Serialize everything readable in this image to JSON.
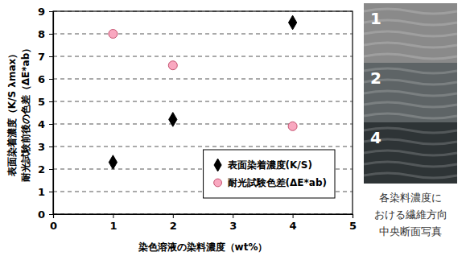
{
  "chart_data": {
    "type": "scatter",
    "xlabel": "染色溶液の染料濃度（wt%）",
    "ylabel": [
      "表面染着濃度（K/S λmax）",
      "耐光試験前後の色差（ΔE*ab）"
    ],
    "x": [
      1,
      2,
      4
    ],
    "series": [
      {
        "name": "表面染着濃度(K/S)",
        "color": "#000000",
        "marker": "diamond",
        "values": [
          2.3,
          4.2,
          8.5
        ]
      },
      {
        "name": "耐光試験色差(ΔE*ab)",
        "color": "#f9a8c0",
        "marker": "circle",
        "values": [
          8.0,
          6.6,
          3.9
        ]
      }
    ],
    "xlim": [
      0,
      5
    ],
    "xticks": [
      0,
      1,
      2,
      3,
      4,
      5
    ],
    "ylim": [
      0,
      9
    ],
    "yticks": [
      0,
      1,
      2,
      3,
      4,
      5,
      6,
      7,
      8,
      9
    ],
    "grid": true,
    "legend": "lower right"
  },
  "side_panel": {
    "photo_labels": [
      "1",
      "2",
      "4"
    ],
    "caption": [
      "各染料濃度に",
      "おける繊維方向",
      "中央断面写真"
    ]
  }
}
